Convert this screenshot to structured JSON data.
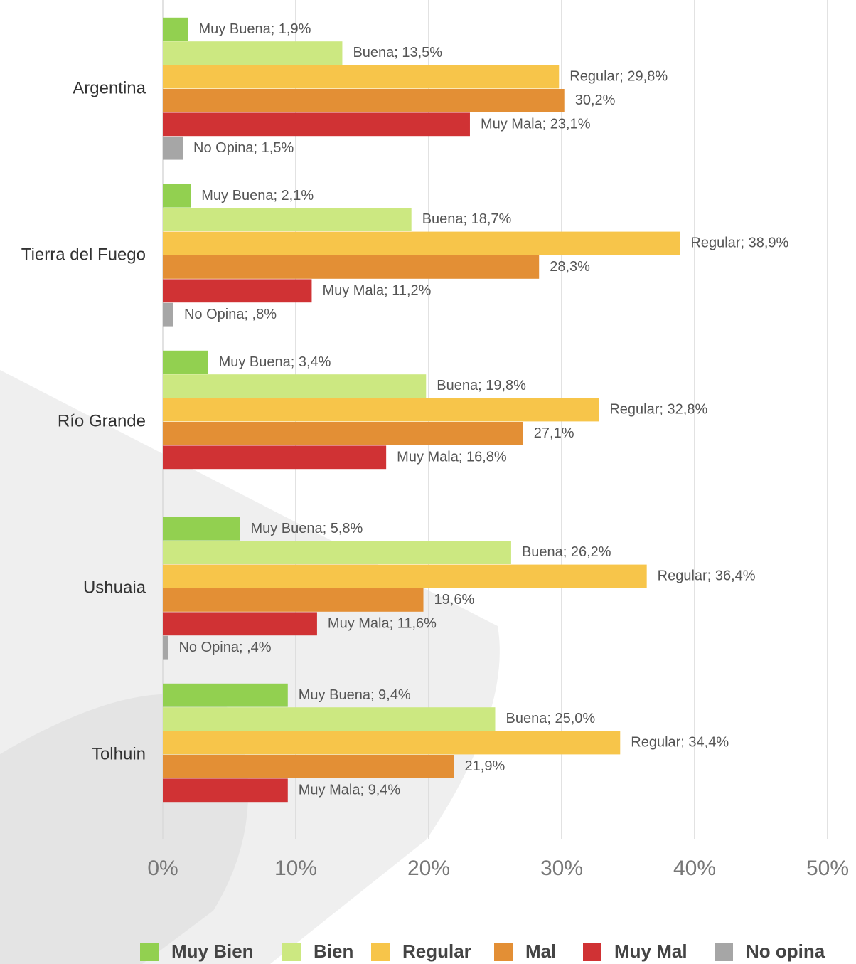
{
  "chart_data": {
    "type": "hbar",
    "categories": [
      "Argentina",
      "Tierra del Fuego",
      "Río Grande",
      "Ushuaia",
      "Tolhuin"
    ],
    "series": [
      {
        "name": "Muy Bien",
        "color": "#92d050",
        "values": [
          1.9,
          2.1,
          3.4,
          5.8,
          9.4
        ],
        "value_labels": [
          "Muy Buena; 1,9%",
          "Muy Buena; 2,1%",
          "Muy Buena; 3,4%",
          "Muy Buena; 5,8%",
          "Muy Buena; 9,4%"
        ]
      },
      {
        "name": "Bien",
        "color": "#cce881",
        "values": [
          13.5,
          18.7,
          19.8,
          26.2,
          25.0
        ],
        "value_labels": [
          "Buena; 13,5%",
          "Buena; 18,7%",
          "Buena; 19,8%",
          "Buena; 26,2%",
          "Buena; 25,0%"
        ]
      },
      {
        "name": "Regular",
        "color": "#f7c54a",
        "values": [
          29.8,
          38.9,
          32.8,
          36.4,
          34.4
        ],
        "value_labels": [
          "Regular; 29,8%",
          "Regular; 38,9%",
          "Regular; 32,8%",
          "Regular; 36,4%",
          "Regular; 34,4%"
        ]
      },
      {
        "name": "Mal",
        "color": "#e38f35",
        "values": [
          30.2,
          28.3,
          27.1,
          19.6,
          21.9
        ],
        "value_labels": [
          "30,2%",
          "28,3%",
          "27,1%",
          "19,6%",
          "21,9%"
        ]
      },
      {
        "name": "Muy Mal",
        "color": "#d03234",
        "values": [
          23.1,
          11.2,
          16.8,
          11.6,
          9.4
        ],
        "value_labels": [
          "Muy Mala; 23,1%",
          "Muy Mala; 11,2%",
          "Muy Mala; 16,8%",
          "Muy Mala; 11,6%",
          "Muy Mala; 9,4%"
        ]
      },
      {
        "name": "No opina",
        "color": "#a6a6a6",
        "values": [
          1.5,
          0.8,
          null,
          0.4,
          null
        ],
        "value_labels": [
          "No Opina; 1,5%",
          "No Opina; ,8%",
          null,
          "No Opina; ,4%",
          null
        ]
      }
    ],
    "xlim": [
      0,
      50
    ],
    "xticks": [
      {
        "value": 0,
        "label": "0%"
      },
      {
        "value": 10,
        "label": "10%"
      },
      {
        "value": 20,
        "label": "20%"
      },
      {
        "value": 30,
        "label": "30%"
      },
      {
        "value": 40,
        "label": "40%"
      },
      {
        "value": 50,
        "label": "50%"
      }
    ],
    "grid": true,
    "legend": "bottom"
  }
}
